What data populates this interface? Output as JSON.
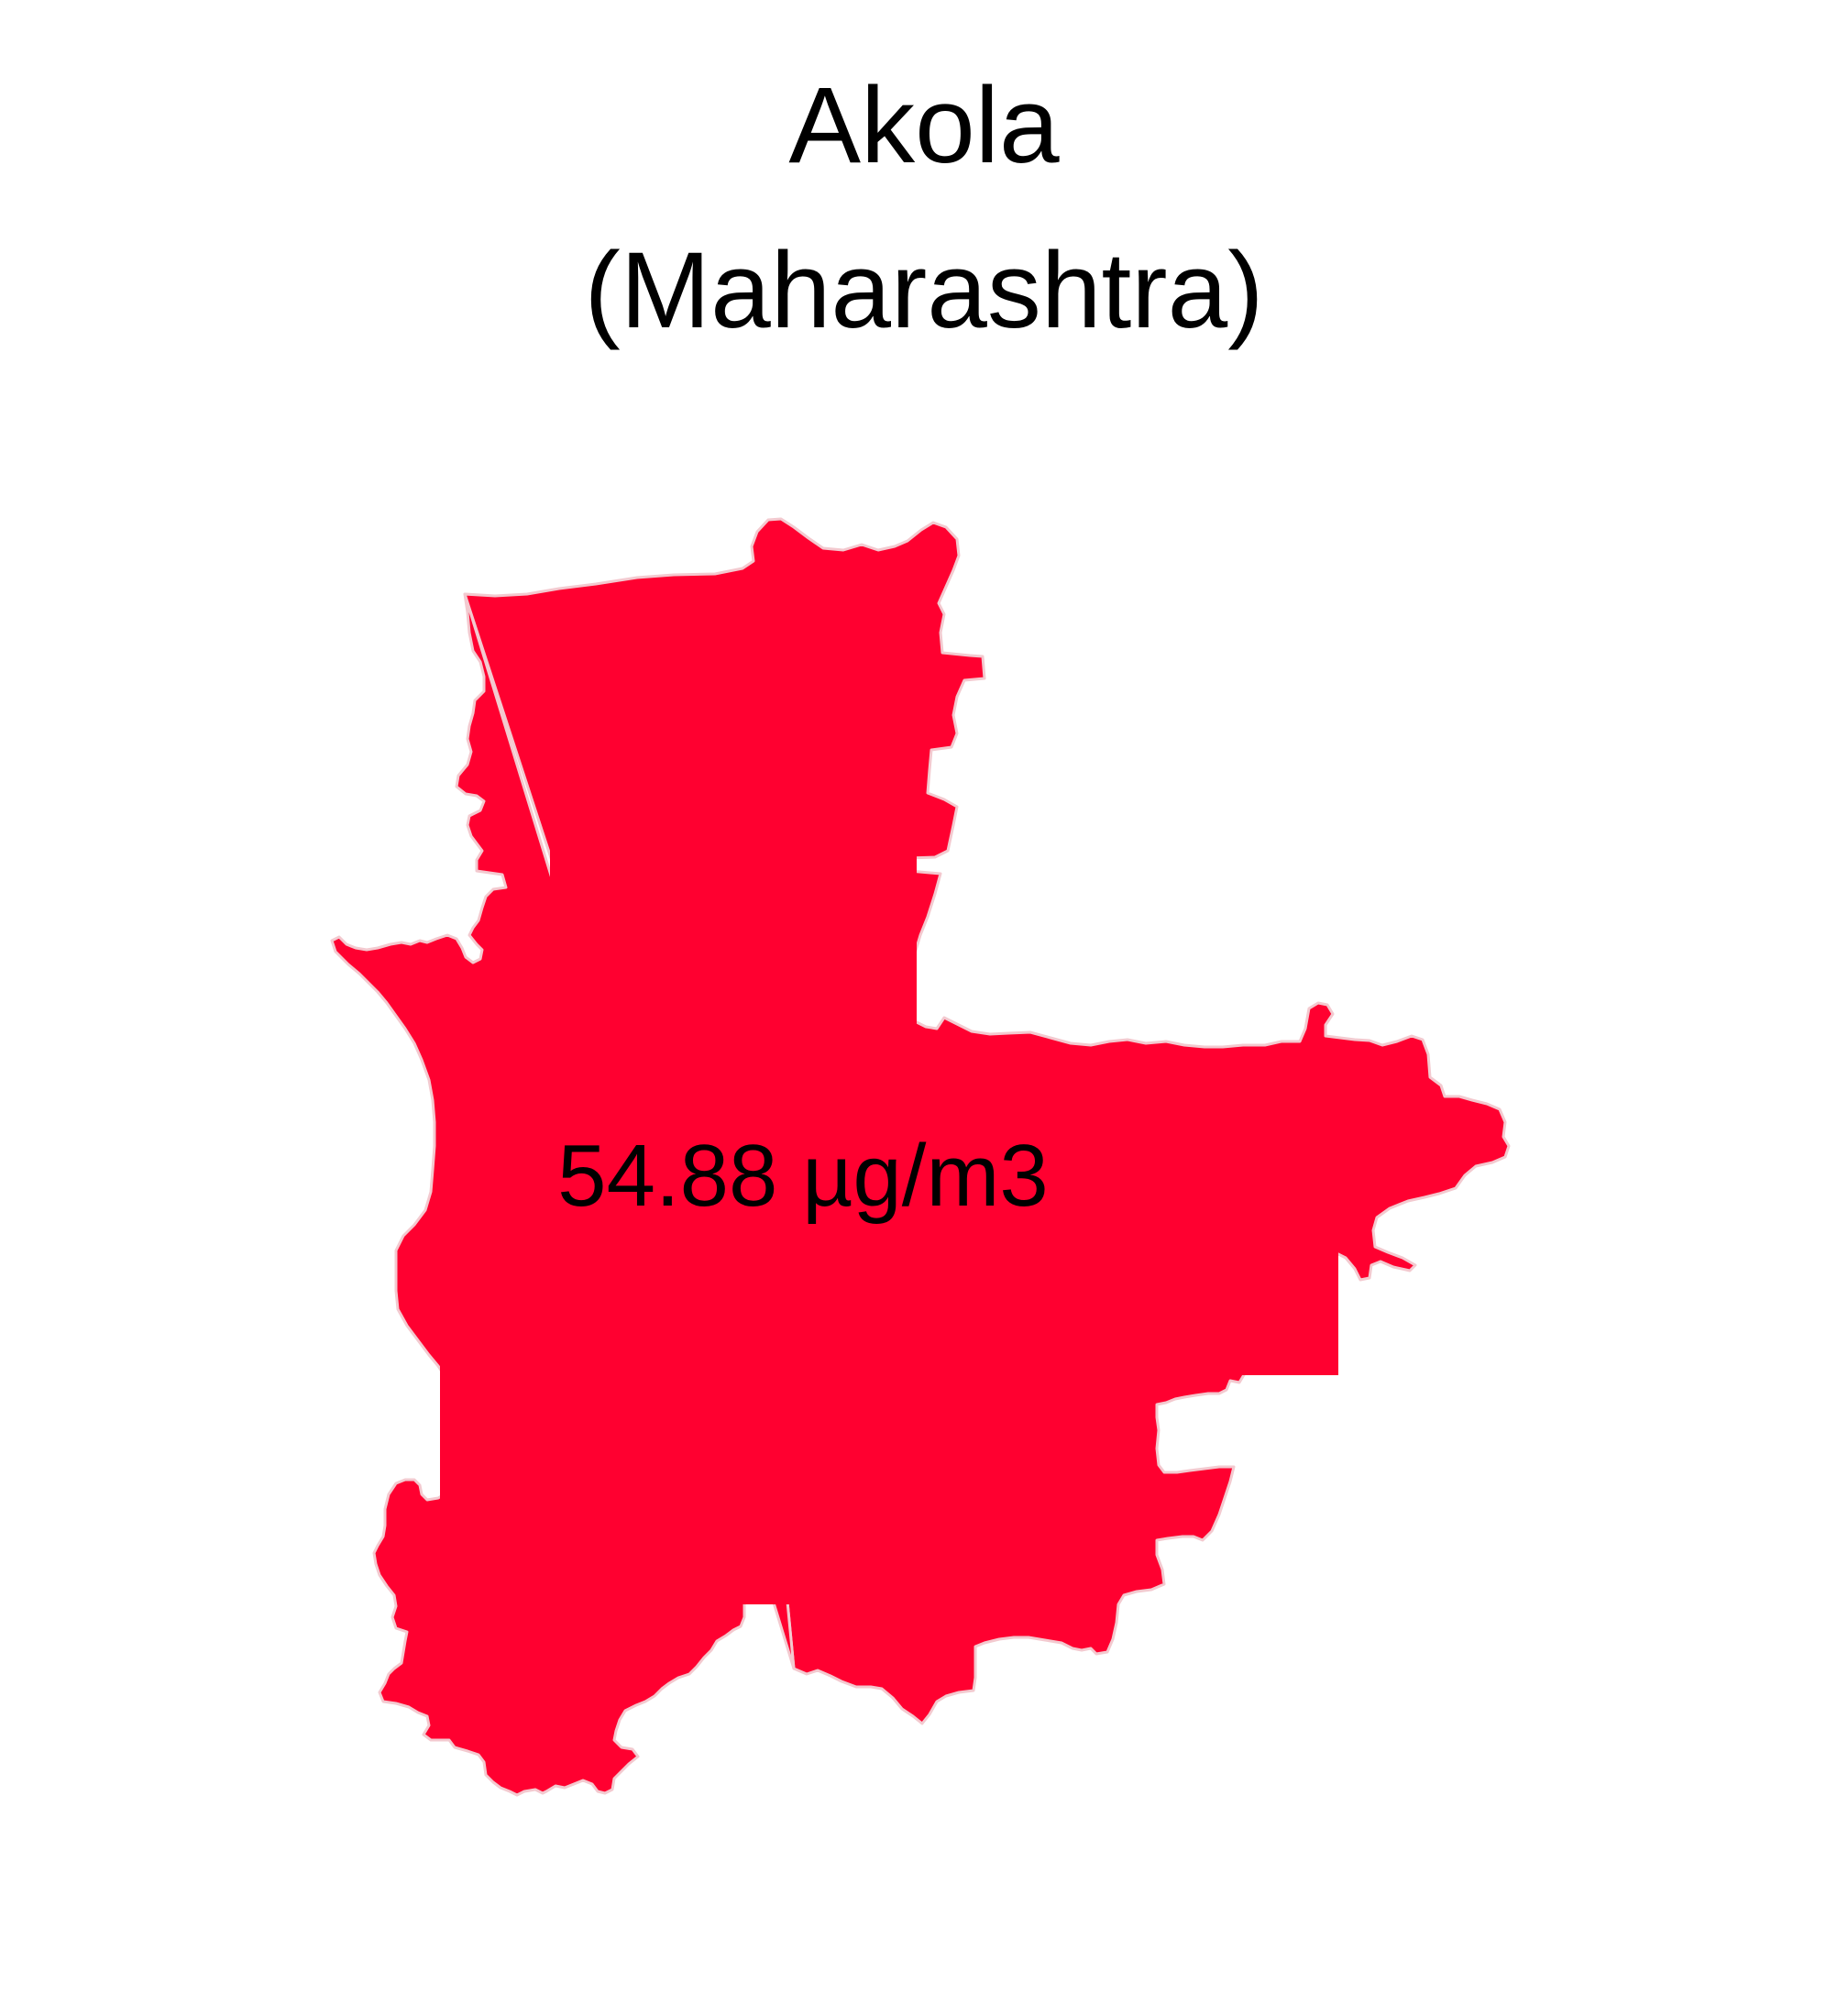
{
  "map": {
    "title_line_1": "Akola",
    "title_line_2": "(Maharashtra)",
    "region_name": "Akola",
    "state_name": "Maharashtra",
    "value_label": "54.88 µg/m3",
    "value": 54.88,
    "unit": "µg/m3",
    "fill_color": "#FF0030",
    "border_color": "#F3C9CF"
  }
}
